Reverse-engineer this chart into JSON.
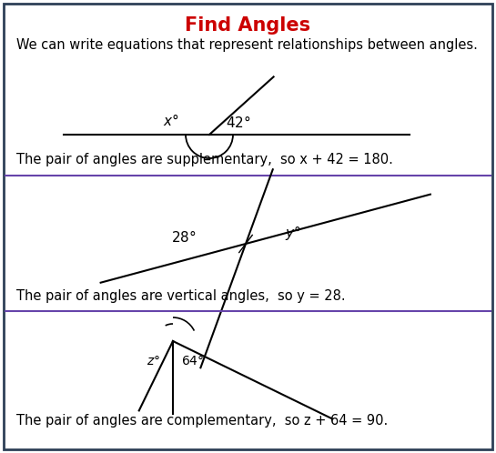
{
  "title": "Find Angles",
  "title_color": "#CC0000",
  "subtitle": "We can write equations that represent relationships between angles.",
  "border_color": "#2E4057",
  "divider_color": "#6644AA",
  "background_color": "#FFFFFF",
  "text1": "The pair of angles are supplementary,  so x + 42 = 180.",
  "text2": "The pair of angles are vertical angles,  so y = 28.",
  "text3": "The pair of angles are complementary,  so z + 64 = 90.",
  "figsize": [
    5.45,
    4.98
  ],
  "dpi": 100
}
